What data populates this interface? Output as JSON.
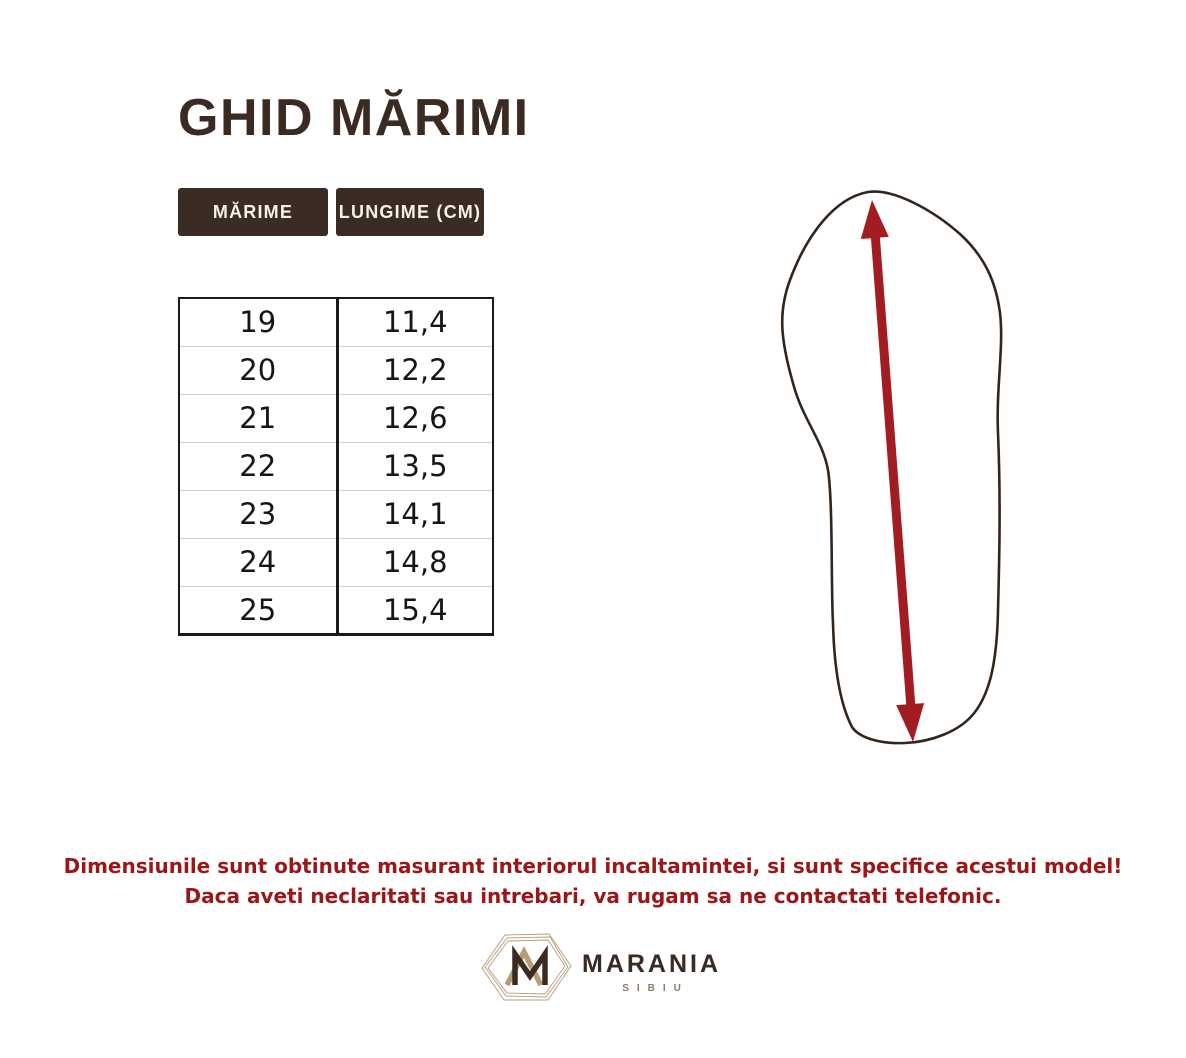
{
  "page": {
    "title": "GHID MĂRIMI"
  },
  "size_table": {
    "headers": {
      "size": "MĂRIME",
      "length": "LUNGIME (CM)"
    },
    "rows": [
      {
        "size": "19",
        "length": "11,4"
      },
      {
        "size": "20",
        "length": "12,2"
      },
      {
        "size": "21",
        "length": "12,6"
      },
      {
        "size": "22",
        "length": "13,5"
      },
      {
        "size": "23",
        "length": "14,1"
      },
      {
        "size": "24",
        "length": "14,8"
      },
      {
        "size": "25",
        "length": "15,4"
      }
    ]
  },
  "diagram": {
    "description": "foot-sole-outline-with-interior-length-arrow",
    "outline_color": "#32251c",
    "arrow_color": "#a21d22"
  },
  "notes": {
    "line1": "Dimensiunile sunt obtinute masurant interiorul incaltamintei, si sunt specifice acestui model!",
    "line2": "Daca aveti neclaritati sau intrebari, va rugam sa ne contactati telefonic.",
    "color": "#9b1717"
  },
  "brand": {
    "name": "MARANIA",
    "city": "SIBIU",
    "monogram": "MA",
    "dark_color": "#3a2a21",
    "tan_color": "#b79c79"
  },
  "colors": {
    "background": "#ffffff",
    "heading": "#3a2a21",
    "header_bg": "#3b2c23",
    "header_text": "#f6f1e7",
    "table_border": "#1a1a1a",
    "row_divider": "#cfcfcf"
  }
}
